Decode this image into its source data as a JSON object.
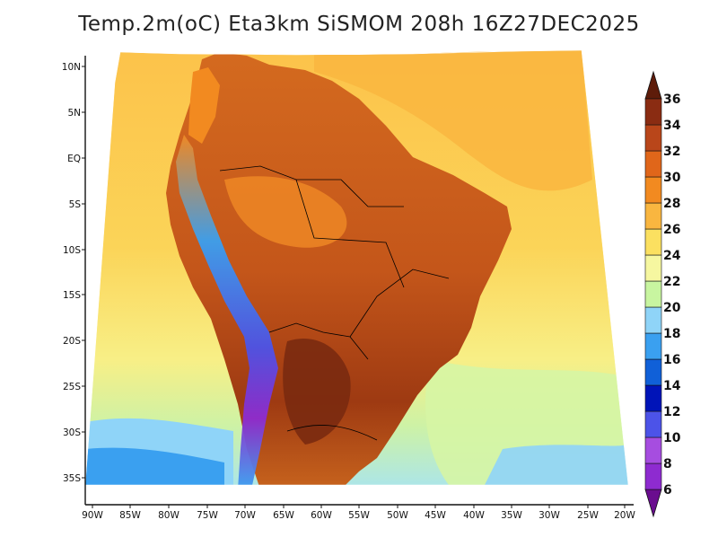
{
  "title": "Temp.2m(oC) Eta3km SiSMOM 208h 16Z27DEC2025",
  "map": {
    "variable": "Temp.2m",
    "units": "oC",
    "model": "Eta3km SiSMOM",
    "forecast_hour": "208h",
    "valid_time": "16Z27DEC2025",
    "lon_ticks": [
      "90W",
      "85W",
      "80W",
      "75W",
      "70W",
      "65W",
      "60W",
      "55W",
      "50W",
      "45W",
      "40W",
      "35W",
      "30W",
      "25W",
      "20W"
    ],
    "lat_ticks": [
      "10N",
      "5N",
      "EQ",
      "5S",
      "10S",
      "15S",
      "20S",
      "25S",
      "30S",
      "35S"
    ]
  },
  "colorbar": {
    "labels": [
      "6",
      "8",
      "10",
      "12",
      "14",
      "16",
      "18",
      "20",
      "22",
      "24",
      "26",
      "28",
      "30",
      "32",
      "34",
      "36"
    ],
    "colors": [
      "#6a0d8f",
      "#8e2bd0",
      "#a64de0",
      "#4c53e8",
      "#0014b8",
      "#1060d8",
      "#3aa0f0",
      "#8fd4f8",
      "#c8f5a0",
      "#f6f7a0",
      "#fbe060",
      "#f9b640",
      "#f28a20",
      "#e0661a",
      "#b9461a",
      "#8a2c12",
      "#5e1c0a"
    ]
  },
  "colors": {
    "ocean_warm": "#fbd24e",
    "ocean_cool": "#f8f590",
    "land_hot": "#c9571a"
  }
}
